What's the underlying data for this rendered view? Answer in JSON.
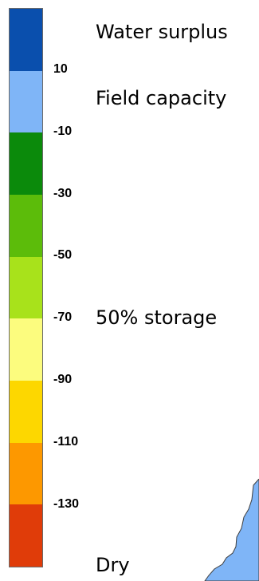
{
  "legend": {
    "colors": [
      "#0a4fad",
      "#7fb5f7",
      "#0b8a0b",
      "#5cbc0a",
      "#a8e21b",
      "#fcfc7e",
      "#fdd700",
      "#fd9800",
      "#e03c09"
    ],
    "ticks": [
      "10",
      "-10",
      "-30",
      "-50",
      "-70",
      "-90",
      "-110",
      "-130"
    ],
    "labels": {
      "water_surplus": "Water surplus",
      "field_capacity": "Field capacity",
      "storage_50": "50% storage",
      "dry": "Dry"
    }
  }
}
